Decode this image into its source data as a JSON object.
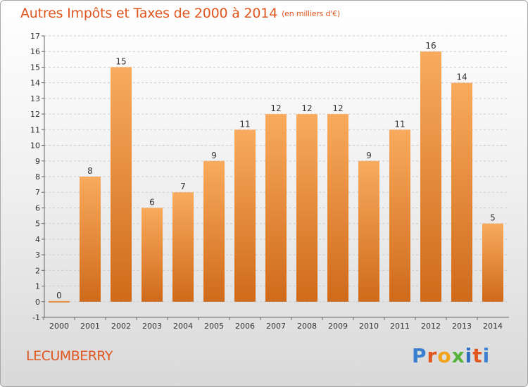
{
  "header": {
    "title": "Autres Impôts et Taxes de 2000 à 2014",
    "subtitle": "(en milliers d'€)"
  },
  "footer": {
    "location": "LECUMBERRY",
    "logo_text": "Proxiti"
  },
  "colors": {
    "title": "#e0561f",
    "bar_light": "#f8ab5e",
    "bar_dark": "#cf6a1a",
    "grid": "#cccccc",
    "axis": "#666666"
  },
  "chart_data": {
    "type": "bar",
    "title": "Autres Impôts et Taxes de 2000 à 2014",
    "subtitle": "(en milliers d'€)",
    "xlabel": "",
    "ylabel": "",
    "categories": [
      "2000",
      "2001",
      "2002",
      "2003",
      "2004",
      "2005",
      "2006",
      "2007",
      "2008",
      "2009",
      "2010",
      "2011",
      "2012",
      "2013",
      "2014"
    ],
    "values": [
      0,
      8,
      15,
      6,
      7,
      9,
      11,
      12,
      12,
      12,
      9,
      11,
      16,
      14,
      5
    ],
    "ylim": [
      -1,
      17
    ],
    "yticks": [
      -1,
      0,
      1,
      2,
      3,
      4,
      5,
      6,
      7,
      8,
      9,
      10,
      11,
      12,
      13,
      14,
      15,
      16,
      17
    ],
    "grid": "horizontal dashed",
    "legend": "none"
  }
}
